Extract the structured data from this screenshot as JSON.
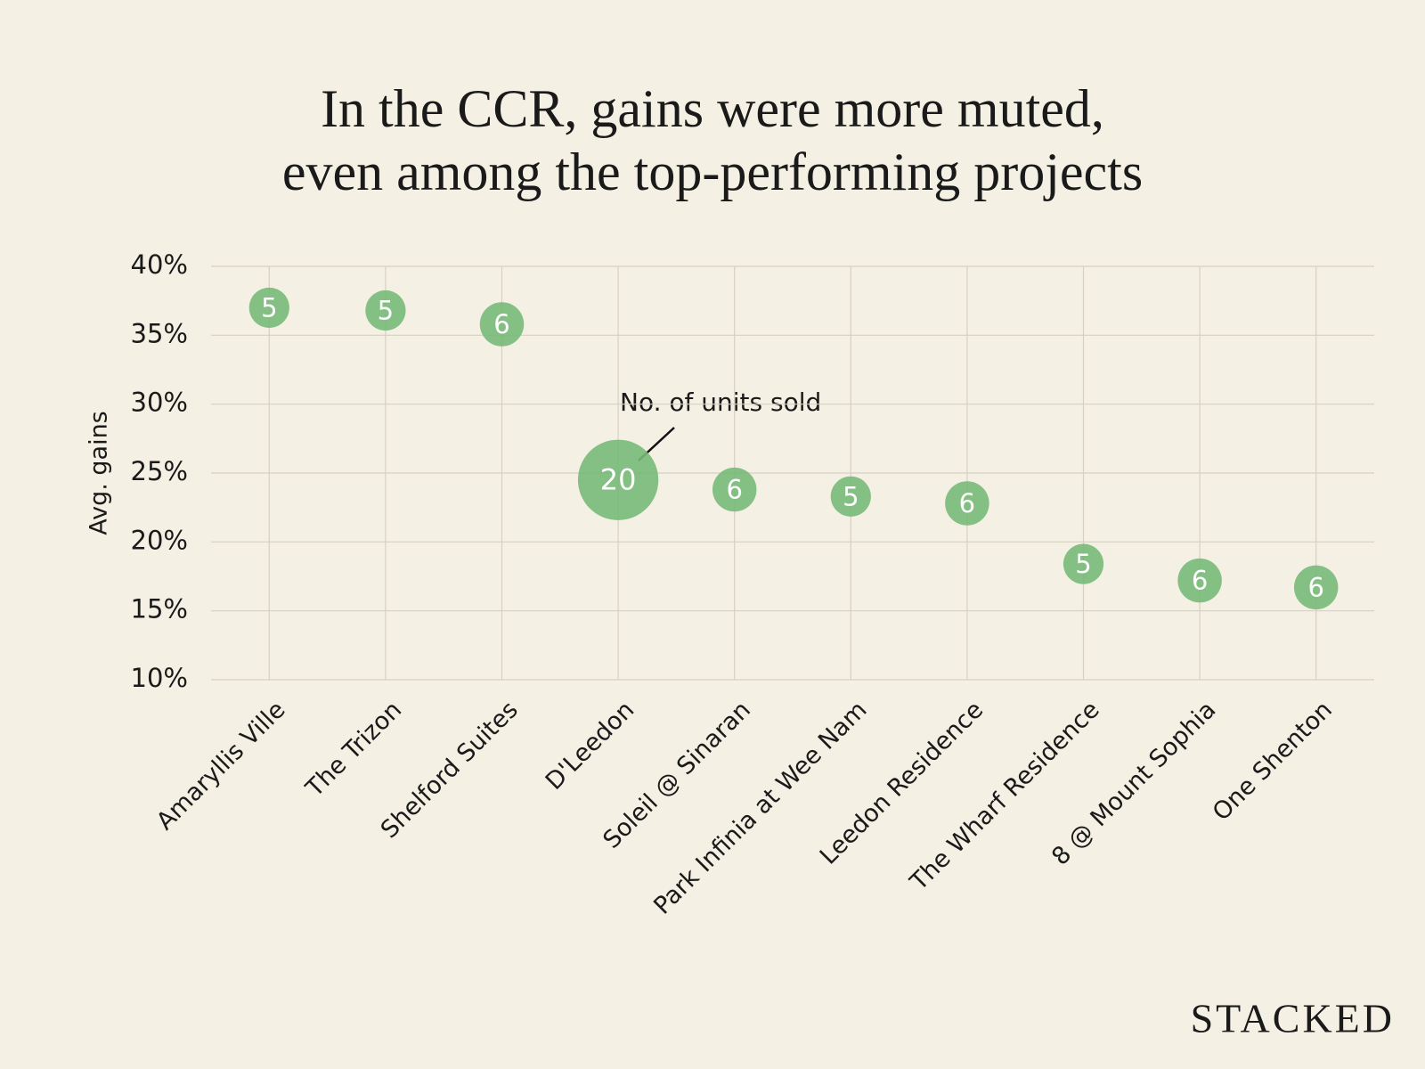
{
  "chart_data": {
    "type": "bubble",
    "title": [
      "In the CCR, gains were more muted,",
      "even among the top-performing projects"
    ],
    "y_label": "Avg. gains",
    "annotation": "No. of units sold",
    "categories": [
      "Amaryllis Ville",
      "The Trizon",
      "Shelford Suites",
      "D'Leedon",
      "Soleil @ Sinaran",
      "Park Infinia at Wee Nam",
      "Leedon Residence",
      "The Wharf Residence",
      "8 @ Mount Sophia",
      "One Shenton"
    ],
    "values": [
      37.0,
      36.8,
      35.8,
      24.5,
      23.8,
      23.3,
      22.8,
      18.4,
      17.2,
      16.7
    ],
    "sizes": [
      5,
      5,
      6,
      20,
      6,
      5,
      6,
      5,
      6,
      6
    ],
    "color": "#78b978",
    "ylim": [
      10,
      40
    ],
    "yticks": [
      {
        "value": 10,
        "label": "10%"
      },
      {
        "value": 15,
        "label": "15%"
      },
      {
        "value": 20,
        "label": "20%"
      },
      {
        "value": 25,
        "label": "25%"
      },
      {
        "value": 30,
        "label": "30%"
      },
      {
        "value": 35,
        "label": "35%"
      },
      {
        "value": 40,
        "label": "40%"
      }
    ],
    "grid": true
  },
  "brand": "STACKED"
}
